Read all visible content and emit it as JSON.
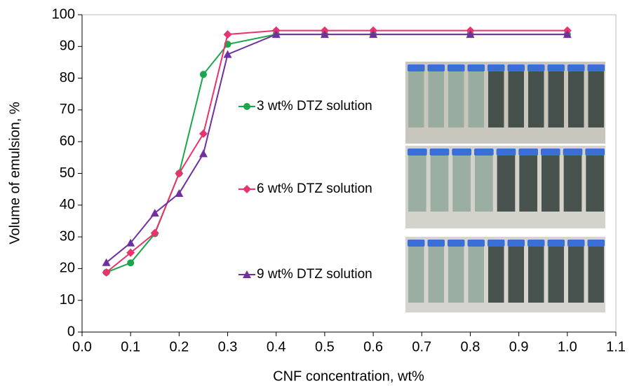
{
  "chart_data": {
    "type": "line",
    "x_label": "CNF concentration, wt%",
    "y_label": "Volume of emulsion, %",
    "xlim": [
      0,
      1.1
    ],
    "ylim": [
      0,
      100
    ],
    "xticks": [
      {
        "value": 0,
        "label": "0.0"
      },
      0.1,
      0.2,
      0.3,
      0.4,
      0.5,
      0.6,
      0.7,
      0.8,
      0.9,
      {
        "value": 1,
        "label": "1.0"
      },
      1.1
    ],
    "yticks": [
      0,
      10,
      20,
      30,
      40,
      50,
      60,
      70,
      80,
      90,
      100
    ],
    "x": [
      0.05,
      0.1,
      0.15,
      0.2,
      0.25,
      0.3,
      0.4,
      0.5,
      0.6,
      0.8,
      1.0
    ],
    "series": [
      {
        "name": "3 wt% DTZ solution",
        "color": "#1aa64a",
        "marker": "circle",
        "values": [
          18.8,
          21.8,
          31.0,
          50.0,
          81.2,
          90.7,
          93.8,
          93.8,
          93.8,
          93.8,
          93.8
        ]
      },
      {
        "name": "6 wt% DTZ solution",
        "color": "#e8336f",
        "marker": "diamond",
        "values": [
          18.8,
          25.0,
          31.2,
          50.0,
          62.5,
          93.8,
          95.0,
          95.0,
          95.0,
          95.0,
          95.0
        ]
      },
      {
        "name": "9 wt% DTZ solution",
        "color": "#7030a0",
        "marker": "triangle",
        "values": [
          21.9,
          28.1,
          37.5,
          43.7,
          56.2,
          87.5,
          93.8,
          93.8,
          93.8,
          93.8,
          93.8
        ]
      }
    ]
  }
}
